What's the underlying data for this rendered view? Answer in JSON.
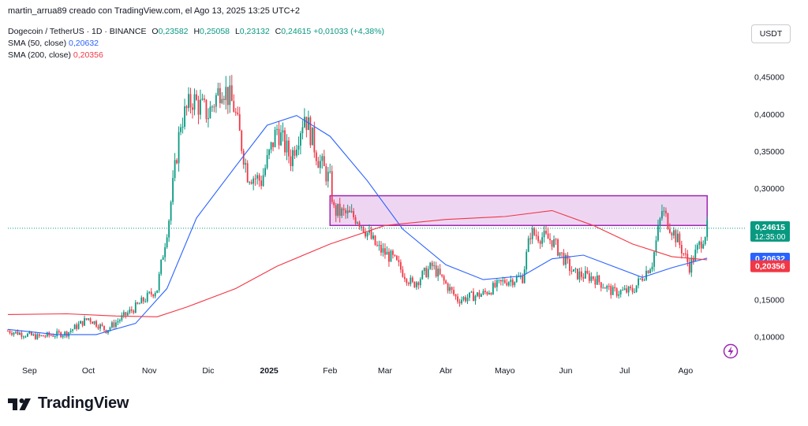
{
  "header": {
    "author_line": "martin_arrua89 creado con TradingView.com, el Ago 13, 2025 13:25 UTC+2"
  },
  "legend": {
    "symbol": "Dogecoin / TetherUS · 1D · BINANCE",
    "o_label": "O",
    "o": "0,23582",
    "h_label": "H",
    "h": "0,25058",
    "l_label": "L",
    "l": "0,23132",
    "c_label": "C",
    "c": "0,24615",
    "change": "+0,01033 (+4,38%)",
    "sma50_label": "SMA (50, close)",
    "sma50_value": "0,20632",
    "sma200_label": "SMA (200, close)",
    "sma200_value": "0,20356"
  },
  "currency": "USDT",
  "brand": "TradingView",
  "colors": {
    "up": "#089981",
    "down": "#f23645",
    "sma50": "#2962ff",
    "sma200": "#f23645",
    "zone_fill": "#e8c8ef",
    "zone_border": "#9c27b0",
    "axis_text": "#131722"
  },
  "icons": {
    "brand_logo": "tradingview-logo-icon",
    "flash": "lightning-icon"
  },
  "chart_data": {
    "type": "candlestick",
    "y_axis": {
      "ticks": [
        "0,10000",
        "0,15000",
        "0,20000",
        "0,25000",
        "0,30000",
        "0,35000",
        "0,40000",
        "0,45000"
      ],
      "range": [
        0.07,
        0.49
      ],
      "position": "right"
    },
    "x_axis": {
      "ticks": [
        "Sep",
        "Oct",
        "Nov",
        "Dic",
        "2025",
        "Feb",
        "Mar",
        "Abr",
        "Mayo",
        "Jun",
        "Jul",
        "Ago"
      ]
    },
    "price_labels": [
      {
        "value": 0.24615,
        "text": "0,24615",
        "subtext": "12:35:00",
        "color": "#089981"
      },
      {
        "value": 0.20632,
        "text": "0,20632",
        "color": "#2962ff"
      },
      {
        "value": 0.20356,
        "text": "0,20356",
        "color": "#f23645"
      }
    ],
    "zone": {
      "from": "2025-02-01",
      "to": "2025-08-12",
      "top": 0.29,
      "bottom": 0.25
    },
    "dotted_last_price": 0.24615,
    "series": [
      {
        "name": "SMA (50, close)",
        "color": "#2962ff",
        "points": [
          [
            "2024-08-21",
            0.11
          ],
          [
            "2024-09-15",
            0.103
          ],
          [
            "2024-10-05",
            0.103
          ],
          [
            "2024-10-25",
            0.118
          ],
          [
            "2024-11-10",
            0.165
          ],
          [
            "2024-11-25",
            0.26
          ],
          [
            "2024-12-15",
            0.33
          ],
          [
            "2024-12-31",
            0.385
          ],
          [
            "2025-01-15",
            0.398
          ],
          [
            "2025-02-01",
            0.37
          ],
          [
            "2025-02-20",
            0.31
          ],
          [
            "2025-03-10",
            0.245
          ],
          [
            "2025-04-01",
            0.197
          ],
          [
            "2025-04-20",
            0.177
          ],
          [
            "2025-05-10",
            0.182
          ],
          [
            "2025-05-25",
            0.205
          ],
          [
            "2025-06-10",
            0.21
          ],
          [
            "2025-06-25",
            0.195
          ],
          [
            "2025-07-10",
            0.18
          ],
          [
            "2025-07-25",
            0.193
          ],
          [
            "2025-08-12",
            0.206
          ]
        ]
      },
      {
        "name": "SMA (200, close)",
        "color": "#f23645",
        "points": [
          [
            "2024-08-21",
            0.13
          ],
          [
            "2024-09-20",
            0.131
          ],
          [
            "2024-10-15",
            0.128
          ],
          [
            "2024-11-05",
            0.127
          ],
          [
            "2024-11-20",
            0.14
          ],
          [
            "2024-12-15",
            0.165
          ],
          [
            "2025-01-05",
            0.195
          ],
          [
            "2025-02-01",
            0.225
          ],
          [
            "2025-03-01",
            0.25
          ],
          [
            "2025-04-01",
            0.258
          ],
          [
            "2025-05-01",
            0.262
          ],
          [
            "2025-05-25",
            0.27
          ],
          [
            "2025-06-15",
            0.25
          ],
          [
            "2025-07-05",
            0.225
          ],
          [
            "2025-07-25",
            0.208
          ],
          [
            "2025-08-12",
            0.2036
          ]
        ]
      }
    ],
    "candles_close_path": [
      [
        "2024-08-21",
        0.108
      ],
      [
        "2024-09-05",
        0.1
      ],
      [
        "2024-09-20",
        0.105
      ],
      [
        "2024-10-01",
        0.125
      ],
      [
        "2024-10-10",
        0.109
      ],
      [
        "2024-10-25",
        0.14
      ],
      [
        "2024-11-05",
        0.165
      ],
      [
        "2024-11-11",
        0.26
      ],
      [
        "2024-11-17",
        0.39
      ],
      [
        "2024-11-23",
        0.42
      ],
      [
        "2024-12-01",
        0.4
      ],
      [
        "2024-12-08",
        0.44
      ],
      [
        "2024-12-14",
        0.41
      ],
      [
        "2024-12-21",
        0.32
      ],
      [
        "2024-12-28",
        0.31
      ],
      [
        "2025-01-05",
        0.38
      ],
      [
        "2025-01-12",
        0.34
      ],
      [
        "2025-01-19",
        0.4
      ],
      [
        "2025-01-26",
        0.34
      ],
      [
        "2025-02-01",
        0.31
      ],
      [
        "2025-02-03",
        0.27
      ],
      [
        "2025-02-15",
        0.26
      ],
      [
        "2025-02-25",
        0.22
      ],
      [
        "2025-03-05",
        0.205
      ],
      [
        "2025-03-15",
        0.17
      ],
      [
        "2025-03-25",
        0.195
      ],
      [
        "2025-04-07",
        0.15
      ],
      [
        "2025-04-20",
        0.158
      ],
      [
        "2025-05-01",
        0.175
      ],
      [
        "2025-05-10",
        0.18
      ],
      [
        "2025-05-14",
        0.24
      ],
      [
        "2025-05-25",
        0.23
      ],
      [
        "2025-06-05",
        0.185
      ],
      [
        "2025-06-15",
        0.18
      ],
      [
        "2025-06-25",
        0.16
      ],
      [
        "2025-07-05",
        0.162
      ],
      [
        "2025-07-15",
        0.2
      ],
      [
        "2025-07-20",
        0.27
      ],
      [
        "2025-07-28",
        0.23
      ],
      [
        "2025-08-03",
        0.195
      ],
      [
        "2025-08-12",
        0.246
      ]
    ]
  }
}
